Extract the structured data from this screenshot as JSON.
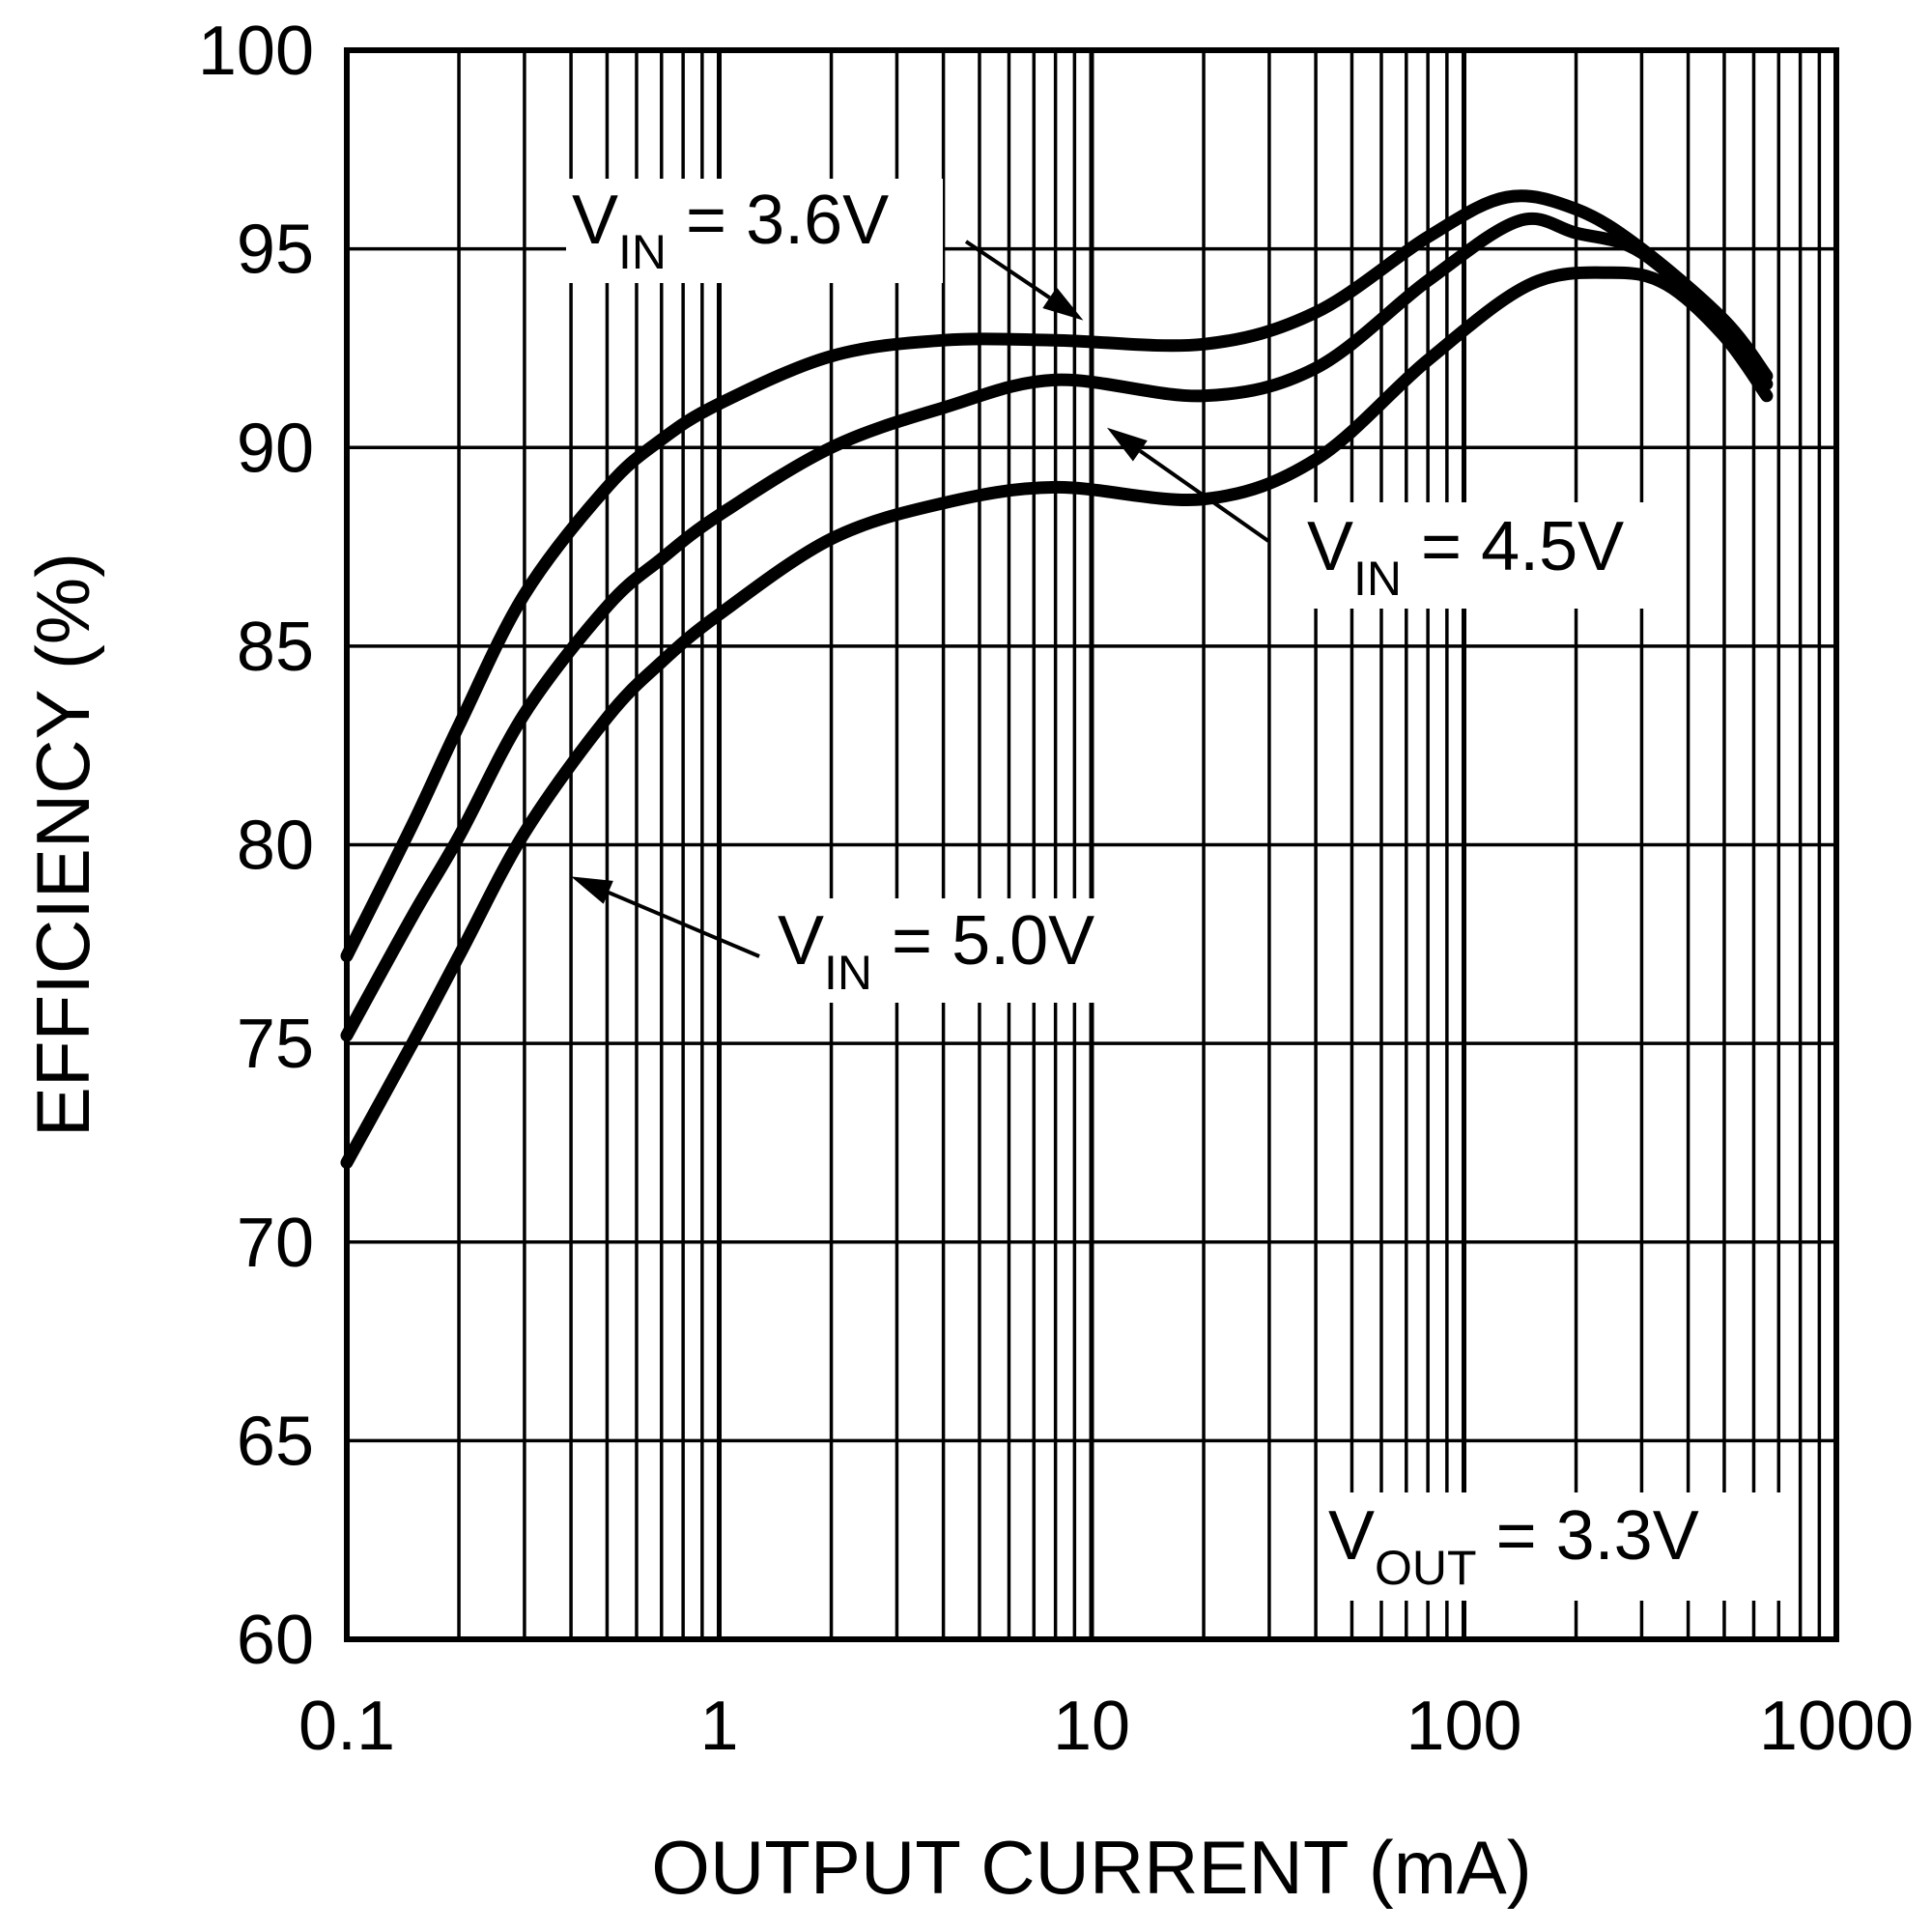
{
  "chart_data": {
    "type": "line",
    "xscale": "log",
    "xlim": [
      0.1,
      1000
    ],
    "ylim": [
      60,
      100
    ],
    "grid": true,
    "xlabel": "OUTPUT CURRENT (mA)",
    "ylabel": "EFFICIENCY (%)",
    "x_tick_labels": [
      "0.1",
      "1",
      "10",
      "100",
      "1000"
    ],
    "y_tick_labels": [
      "60",
      "65",
      "70",
      "75",
      "80",
      "85",
      "90",
      "95",
      "100"
    ],
    "series": [
      {
        "name": "VIN = 3.6V",
        "label_main": "V",
        "label_sub": "IN",
        "label_rest": " = 3.6V",
        "x": [
          0.1,
          0.15,
          0.2,
          0.3,
          0.5,
          0.7,
          1,
          2,
          4,
          8,
          20,
          40,
          80,
          130,
          200,
          300,
          500,
          650
        ],
        "y": [
          77.2,
          80.5,
          83,
          86.3,
          89,
          90.2,
          91.1,
          92.3,
          92.7,
          92.7,
          92.6,
          93.4,
          95.3,
          96.3,
          96.0,
          95.0,
          93.2,
          91.8
        ]
      },
      {
        "name": "VIN = 4.5V",
        "label_main": "V",
        "label_sub": "IN",
        "label_rest": " = 4.5V",
        "x": [
          0.1,
          0.15,
          0.2,
          0.3,
          0.5,
          0.7,
          1,
          2,
          4,
          8,
          20,
          40,
          80,
          140,
          200,
          300,
          500,
          650
        ],
        "y": [
          75.2,
          78.2,
          80.2,
          83.3,
          86,
          87.2,
          88.3,
          90.0,
          91.0,
          91.7,
          91.3,
          92.0,
          94.2,
          95.7,
          95.4,
          94.9,
          93.0,
          91.6
        ]
      },
      {
        "name": "VIN = 5.0V",
        "label_main": "V",
        "label_sub": "IN",
        "label_rest": " = 5.0V",
        "x": [
          0.1,
          0.15,
          0.2,
          0.3,
          0.5,
          0.7,
          1,
          2,
          4,
          8,
          20,
          40,
          80,
          150,
          250,
          350,
          500,
          650
        ],
        "y": [
          72.0,
          75.0,
          77.2,
          80.3,
          83.2,
          84.6,
          85.8,
          87.7,
          88.6,
          89.0,
          88.7,
          89.7,
          92.2,
          94.1,
          94.4,
          94.1,
          92.8,
          91.3
        ]
      }
    ],
    "annotations": [
      {
        "id": "vin36",
        "main": "V",
        "sub": "IN",
        "rest": " = 3.6V",
        "points_to": {
          "x": 9.5,
          "y": 93.2
        }
      },
      {
        "id": "vin45",
        "main": "V",
        "sub": "IN",
        "rest": " = 4.5V",
        "points_to": {
          "x": 11,
          "y": 90.5
        }
      },
      {
        "id": "vin50",
        "main": "V",
        "sub": "IN",
        "rest": " = 5.0V",
        "points_to": {
          "x": 0.4,
          "y": 79.2
        }
      },
      {
        "id": "vout",
        "main": "V",
        "sub": "OUT",
        "rest": " = 3.3V"
      }
    ],
    "colors": {
      "line": "#000000",
      "grid": "#000000",
      "background": "#ffffff"
    }
  }
}
